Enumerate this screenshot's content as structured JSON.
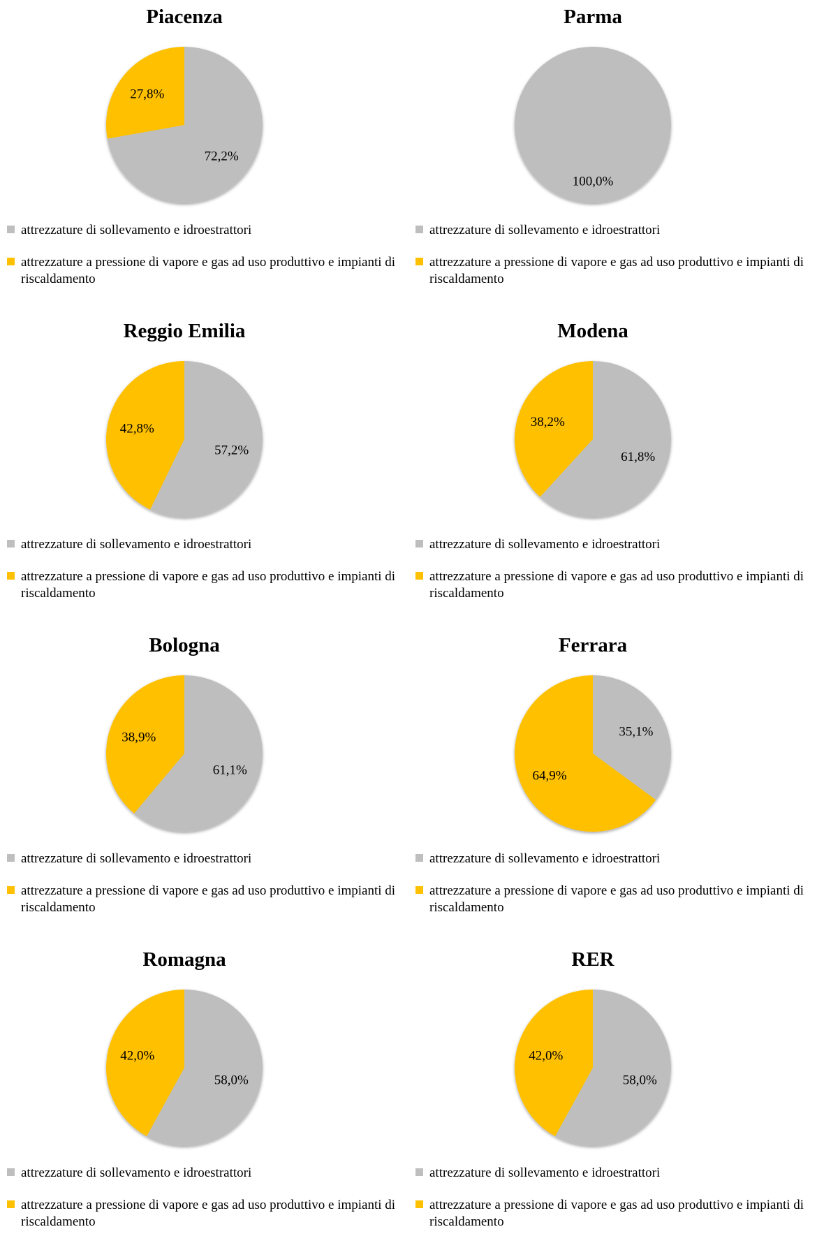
{
  "colors": {
    "gray": "#BEBEBE",
    "yellow": "#FFC000"
  },
  "legend": [
    {
      "label": "attrezzature di sollevamento e idroestrattori",
      "color": "#BEBEBE"
    },
    {
      "label": "attrezzature a pressione di vapore e gas ad uso produttivo e impianti di riscaldamento",
      "color": "#FFC000"
    }
  ],
  "chart_data": [
    {
      "type": "pie",
      "title": "Piacenza",
      "categories": [
        "attrezzature di sollevamento e idroestrattori",
        "attrezzature a pressione di vapore e gas ad uso produttivo e impianti di riscaldamento"
      ],
      "values": [
        72.2,
        27.8
      ],
      "labels": [
        "72,2%",
        "27,8%"
      ]
    },
    {
      "type": "pie",
      "title": "Parma",
      "categories": [
        "attrezzature di sollevamento e idroestrattori",
        "attrezzature a pressione di vapore e gas ad uso produttivo e impianti di riscaldamento"
      ],
      "values": [
        100.0,
        0.0
      ],
      "labels": [
        "100,0%",
        ""
      ]
    },
    {
      "type": "pie",
      "title": "Reggio Emilia",
      "categories": [
        "attrezzature di sollevamento e idroestrattori",
        "attrezzature a pressione di vapore e gas ad uso produttivo e impianti di riscaldamento"
      ],
      "values": [
        57.2,
        42.8
      ],
      "labels": [
        "57,2%",
        "42,8%"
      ]
    },
    {
      "type": "pie",
      "title": "Modena",
      "categories": [
        "attrezzature di sollevamento e idroestrattori",
        "attrezzature a pressione di vapore e gas ad uso produttivo e impianti di riscaldamento"
      ],
      "values": [
        61.8,
        38.2
      ],
      "labels": [
        "61,8%",
        "38,2%"
      ]
    },
    {
      "type": "pie",
      "title": "Bologna",
      "categories": [
        "attrezzature di sollevamento e idroestrattori",
        "attrezzature a pressione di vapore e gas ad uso produttivo e impianti di riscaldamento"
      ],
      "values": [
        61.1,
        38.9
      ],
      "labels": [
        "61,1%",
        "38,9%"
      ]
    },
    {
      "type": "pie",
      "title": "Ferrara",
      "categories": [
        "attrezzature di sollevamento e idroestrattori",
        "attrezzature a pressione di vapore e gas ad uso produttivo e impianti di riscaldamento"
      ],
      "values": [
        35.1,
        64.9
      ],
      "labels": [
        "35,1%",
        "64,9%"
      ]
    },
    {
      "type": "pie",
      "title": "Romagna",
      "categories": [
        "attrezzature di sollevamento e idroestrattori",
        "attrezzature a pressione di vapore e gas ad uso produttivo e impianti di riscaldamento"
      ],
      "values": [
        58.0,
        42.0
      ],
      "labels": [
        "58,0%",
        "42,0%"
      ]
    },
    {
      "type": "pie",
      "title": "RER",
      "categories": [
        "attrezzature di sollevamento e idroestrattori",
        "attrezzature a pressione di vapore e gas ad uso produttivo e impianti di riscaldamento"
      ],
      "values": [
        58.0,
        42.0
      ],
      "labels": [
        "58,0%",
        "42,0%"
      ]
    }
  ]
}
